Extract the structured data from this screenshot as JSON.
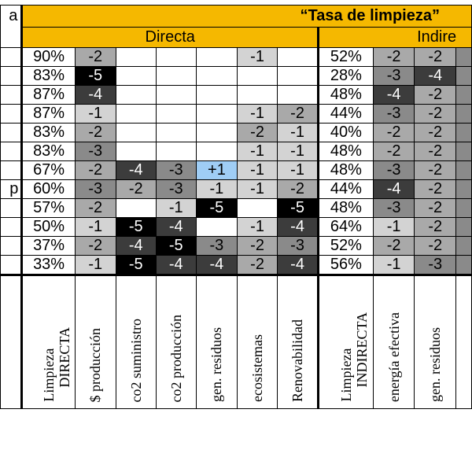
{
  "header": {
    "corner_text": "a",
    "title": "“Tasa de limpieza”",
    "group_direct": "Directa",
    "group_indirect": "Indire"
  },
  "row_labels": [
    "",
    "",
    "",
    "",
    "",
    "",
    "",
    "p",
    "",
    "",
    "",
    ""
  ],
  "rows": [
    {
      "direct_pct": "90%",
      "direct": [
        "-2",
        "",
        "",
        "",
        "-1",
        ""
      ],
      "indirect_pct": "52%",
      "indirect": [
        "-2",
        "-2"
      ]
    },
    {
      "direct_pct": "83%",
      "direct": [
        "-5",
        "",
        "",
        "",
        "",
        ""
      ],
      "indirect_pct": "28%",
      "indirect": [
        "-3",
        "-4"
      ]
    },
    {
      "direct_pct": "87%",
      "direct": [
        "-4",
        "",
        "",
        "",
        "",
        ""
      ],
      "indirect_pct": "48%",
      "indirect": [
        "-4",
        "-2"
      ]
    },
    {
      "direct_pct": "87%",
      "direct": [
        "-1",
        "",
        "",
        "",
        "-1",
        "-2"
      ],
      "indirect_pct": "44%",
      "indirect": [
        "-3",
        "-2"
      ]
    },
    {
      "direct_pct": "83%",
      "direct": [
        "-2",
        "",
        "",
        "",
        "-2",
        "-1"
      ],
      "indirect_pct": "40%",
      "indirect": [
        "-2",
        "-2"
      ]
    },
    {
      "direct_pct": "83%",
      "direct": [
        "-3",
        "",
        "",
        "",
        "-1",
        "-1"
      ],
      "indirect_pct": "48%",
      "indirect": [
        "-2",
        "-2"
      ]
    },
    {
      "direct_pct": "67%",
      "direct": [
        "-2",
        "-4",
        "-3",
        "+1",
        "-1",
        "-1"
      ],
      "indirect_pct": "48%",
      "indirect": [
        "-3",
        "-2"
      ]
    },
    {
      "direct_pct": "60%",
      "direct": [
        "-3",
        "-2",
        "-3",
        "-1",
        "-1",
        "-2"
      ],
      "indirect_pct": "44%",
      "indirect": [
        "-4",
        "-2"
      ]
    },
    {
      "direct_pct": "57%",
      "direct": [
        "-2",
        "",
        "-1",
        "-5",
        "",
        "-5"
      ],
      "indirect_pct": "48%",
      "indirect": [
        "-3",
        "-2"
      ]
    },
    {
      "direct_pct": "50%",
      "direct": [
        "-1",
        "-5",
        "-4",
        "",
        "-1",
        "-4"
      ],
      "indirect_pct": "64%",
      "indirect": [
        "-1",
        "-2"
      ]
    },
    {
      "direct_pct": "37%",
      "direct": [
        "-2",
        "-4",
        "-5",
        "-3",
        "-2",
        "-3"
      ],
      "indirect_pct": "52%",
      "indirect": [
        "-2",
        "-2"
      ]
    },
    {
      "direct_pct": "33%",
      "direct": [
        "-1",
        "-5",
        "-4",
        "-4",
        "-2",
        "-4"
      ],
      "indirect_pct": "56%",
      "indirect": [
        "-1",
        "-3"
      ]
    }
  ],
  "footer_labels": [
    "Limpieza\n    DIRECTA\n.",
    "$ producción",
    "co2 suministro",
    "co2 producción",
    "gen. residuos",
    "ecosistemas",
    "Renovabilidad",
    "Limpieza\n    INDIRECTA\n.",
    "energía efectiva",
    "gen. residuos"
  ],
  "colors": {
    "header_band": "#f5b800",
    "positive_cell": "#9fcdf5",
    "score_-1": "#d3d3d3",
    "score_-2": "#a9a9a9",
    "score_-3": "#8a8a8a",
    "score_-4": "#3c3c3c",
    "score_-5": "#000000"
  }
}
